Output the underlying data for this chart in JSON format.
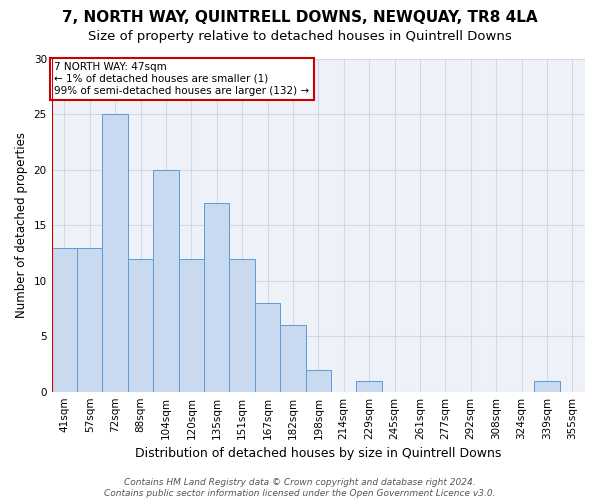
{
  "title": "7, NORTH WAY, QUINTRELL DOWNS, NEWQUAY, TR8 4LA",
  "subtitle": "Size of property relative to detached houses in Quintrell Downs",
  "xlabel": "Distribution of detached houses by size in Quintrell Downs",
  "ylabel": "Number of detached properties",
  "categories": [
    "41sqm",
    "57sqm",
    "72sqm",
    "88sqm",
    "104sqm",
    "120sqm",
    "135sqm",
    "151sqm",
    "167sqm",
    "182sqm",
    "198sqm",
    "214sqm",
    "229sqm",
    "245sqm",
    "261sqm",
    "277sqm",
    "292sqm",
    "308sqm",
    "324sqm",
    "339sqm",
    "355sqm"
  ],
  "values": [
    13,
    13,
    25,
    12,
    20,
    12,
    17,
    12,
    8,
    6,
    2,
    0,
    1,
    0,
    0,
    0,
    0,
    0,
    0,
    1,
    0
  ],
  "bar_color": "#c9d9f0",
  "bar_edge_color": "#5b9bd5",
  "vline_color": "#cc0000",
  "annotation_text": "7 NORTH WAY: 47sqm\n← 1% of detached houses are smaller (1)\n99% of semi-detached houses are larger (132) →",
  "annotation_box_color": "#ffffff",
  "annotation_box_edge": "#cc0000",
  "ylim": [
    0,
    30
  ],
  "yticks": [
    0,
    5,
    10,
    15,
    20,
    25,
    30
  ],
  "footnote": "Contains HM Land Registry data © Crown copyright and database right 2024.\nContains public sector information licensed under the Open Government Licence v3.0.",
  "background_color": "#ffffff",
  "grid_color": "#d0d8e8",
  "title_fontsize": 11,
  "subtitle_fontsize": 9.5,
  "xlabel_fontsize": 9,
  "ylabel_fontsize": 8.5,
  "tick_fontsize": 7.5,
  "footnote_fontsize": 6.5
}
